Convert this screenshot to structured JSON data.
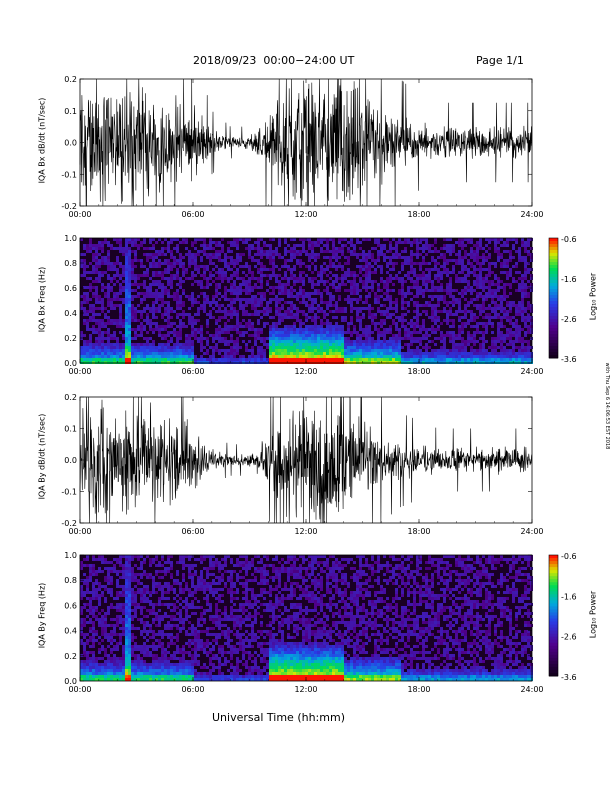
{
  "header": {
    "date_title": "2018/09/23",
    "time_range": "00:00−24:00 UT",
    "page": "Page 1/1"
  },
  "footer": {
    "xlabel": "Universal Time (hh:mm)"
  },
  "side_note": "with Thu Sep 6 14:06:53 EST 2018",
  "colorbar": {
    "label": "Log₁₀ Power",
    "ticks": [
      "-0.6",
      "-1.6",
      "-2.6",
      "-3.6"
    ]
  },
  "chart_data": [
    {
      "type": "line",
      "ylabel": "IQA Bx dB/dt (nT/sec)",
      "xlim": [
        0,
        24
      ],
      "ylim": [
        -0.2,
        0.2
      ],
      "x_ticks": [
        "00:00",
        "06:00",
        "12:00",
        "18:00",
        "24:00"
      ],
      "y_ticks": [
        "0.2",
        "0.1",
        "0.0",
        "-0.1",
        "-0.2"
      ],
      "series": [
        {
          "x": [
            0,
            1,
            2,
            2.5,
            3,
            4,
            5,
            6,
            7,
            8,
            9,
            10,
            11,
            12,
            13,
            14,
            15,
            16,
            17,
            18,
            19,
            20,
            21,
            22,
            23,
            24
          ],
          "amplitude": [
            0.2,
            0.2,
            0.2,
            0.2,
            0.2,
            0.15,
            0.14,
            0.12,
            0.04,
            0.02,
            0.02,
            0.09,
            0.2,
            0.2,
            0.2,
            0.2,
            0.16,
            0.12,
            0.08,
            0.06,
            0.05,
            0.05,
            0.05,
            0.05,
            0.05,
            0.05
          ]
        }
      ]
    },
    {
      "type": "heatmap",
      "ylabel": "IQA Bx Freq (Hz)",
      "xlim": [
        0,
        24
      ],
      "ylim": [
        0,
        1.0
      ],
      "x_ticks": [
        "00:00",
        "06:00",
        "12:00",
        "18:00",
        "24:00"
      ],
      "y_ticks": [
        "1.0",
        "0.8",
        "0.6",
        "0.4",
        "0.2",
        "0.0"
      ],
      "colorbar_range": [
        -3.6,
        -0.6
      ]
    },
    {
      "type": "line",
      "ylabel": "IQA By dB/dt (nT/sec)",
      "xlim": [
        0,
        24
      ],
      "ylim": [
        -0.2,
        0.2
      ],
      "x_ticks": [
        "00:00",
        "06:00",
        "12:00",
        "18:00",
        "24:00"
      ],
      "y_ticks": [
        "0.2",
        "0.1",
        "0.0",
        "-0.1",
        "-0.2"
      ],
      "series": [
        {
          "x": [
            0,
            1,
            2,
            2.5,
            3,
            4,
            5,
            6,
            7,
            8,
            9,
            10,
            11,
            12,
            13,
            14,
            15,
            16,
            17,
            18,
            19,
            20,
            21,
            22,
            23,
            24
          ],
          "amplitude": [
            0.2,
            0.2,
            0.2,
            0.2,
            0.2,
            0.15,
            0.14,
            0.1,
            0.03,
            0.02,
            0.02,
            0.07,
            0.2,
            0.2,
            0.2,
            0.2,
            0.12,
            0.08,
            0.06,
            0.05,
            0.04,
            0.04,
            0.04,
            0.04,
            0.04,
            0.04
          ]
        }
      ]
    },
    {
      "type": "heatmap",
      "ylabel": "IQA By Freq (Hz)",
      "xlim": [
        0,
        24
      ],
      "ylim": [
        0,
        1.0
      ],
      "x_ticks": [
        "00:00",
        "06:00",
        "12:00",
        "18:00",
        "24:00"
      ],
      "y_ticks": [
        "1.0",
        "0.8",
        "0.6",
        "0.4",
        "0.2",
        "0.0"
      ],
      "colorbar_range": [
        -3.6,
        -0.6
      ]
    }
  ]
}
